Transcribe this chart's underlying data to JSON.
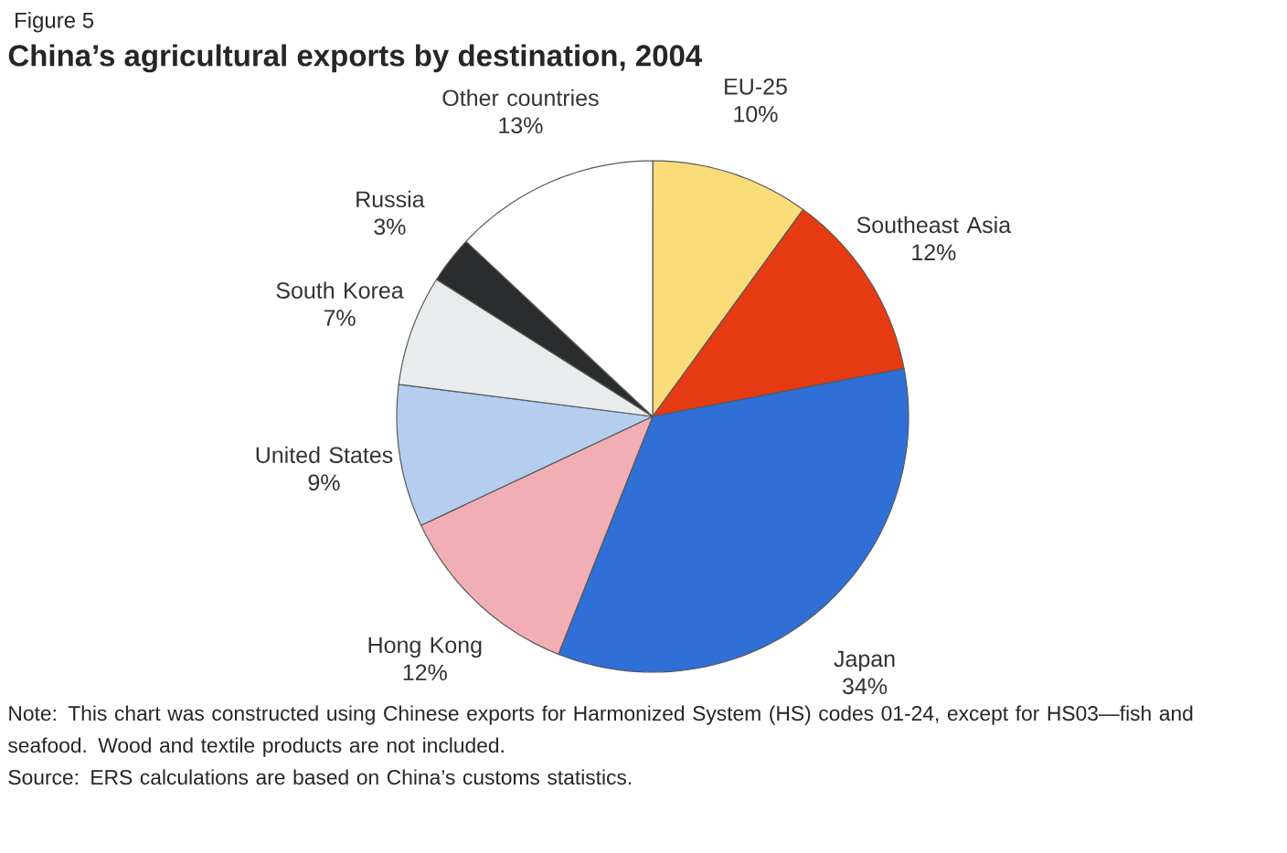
{
  "chart_data": {
    "type": "pie",
    "title": "China’s agricultural exports by destination, 2004",
    "categories": [
      "EU-25",
      "Southeast Asia",
      "Japan",
      "Hong Kong",
      "United States",
      "South Korea",
      "Russia",
      "Other countries"
    ],
    "values": [
      10,
      12,
      34,
      12,
      9,
      7,
      3,
      13
    ],
    "value_labels": [
      "10%",
      "12%",
      "34%",
      "12%",
      "9%",
      "7%",
      "3%",
      "13%"
    ],
    "colors": [
      "#f9dc7a",
      "#e63a12",
      "#2f6fd6",
      "#f2aeb5",
      "#b5cdee",
      "#e9eced",
      "#2b2c2e",
      "#ffffff"
    ],
    "annotations": [
      "Figure 5",
      "Note: This chart was constructed using Chinese exports for Harmonized System (HS) codes 01-24, except for HS03—fish and seafood. Wood and textile products are not included.",
      "Source: ERS calculations are based on China’s customs statistics."
    ]
  }
}
